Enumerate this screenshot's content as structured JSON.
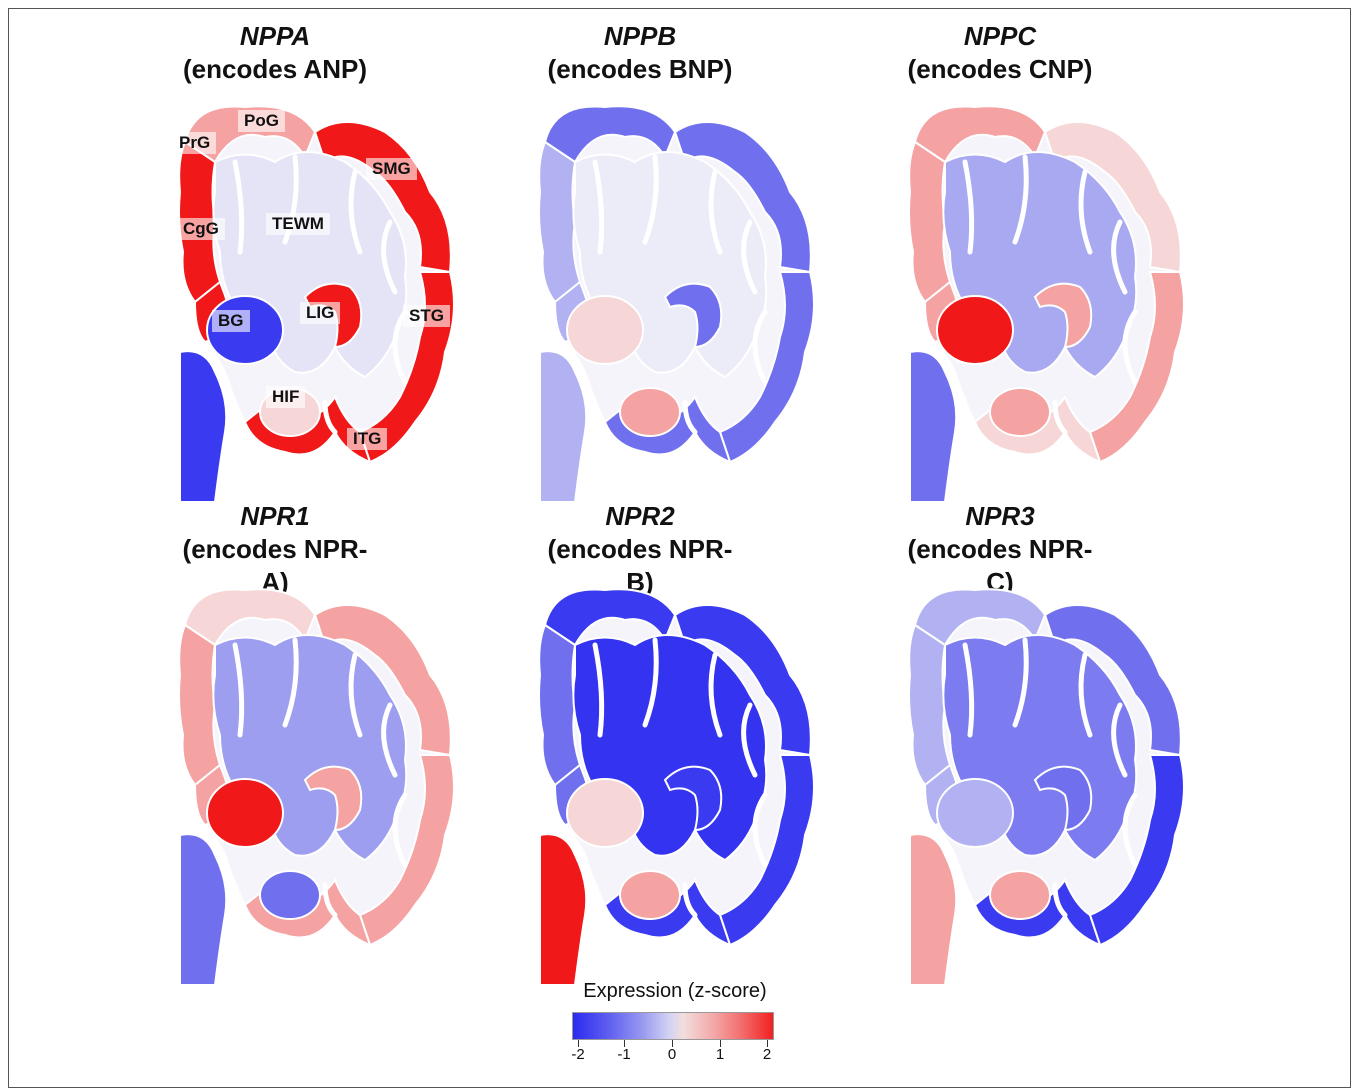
{
  "panels": [
    {
      "gene": "NPPA",
      "encodes": "(encodes ANP)"
    },
    {
      "gene": "NPPB",
      "encodes": "(encodes BNP)"
    },
    {
      "gene": "NPPC",
      "encodes": "(encodes CNP)"
    },
    {
      "gene": "NPR1",
      "encodes": "(encodes NPR-A)"
    },
    {
      "gene": "NPR2",
      "encodes": "(encodes NPR-B)"
    },
    {
      "gene": "NPR3",
      "encodes": "(encodes NPR-C)"
    }
  ],
  "region_labels": {
    "prg": "PrG",
    "pog": "PoG",
    "smg": "SMG",
    "cgg": "CgG",
    "tewm": "TEWM",
    "bg": "BG",
    "lig": "LIG",
    "stg": "STG",
    "hif": "HIF",
    "itg": "ITG"
  },
  "legend": {
    "title": "Expression (z-score)",
    "ticks": [
      "-2",
      "-1",
      "0",
      "1",
      "2"
    ]
  },
  "colors": {
    "white_matter_nppa": "#e4e4f6",
    "white_matter_nppb": "#ececf8",
    "white_matter_nppc": "#a9a9f2",
    "white_matter_npr1": "#9e9ef0",
    "white_matter_npr2": "#3434f0",
    "white_matter_npr3": "#7c7cf0",
    "red": "#f01818",
    "light_red": "#f4a2a2",
    "pale_red": "#f6d6d6",
    "blue": "#3a3af0",
    "mid_blue": "#7070ee",
    "light_blue": "#b2b2f2"
  }
}
